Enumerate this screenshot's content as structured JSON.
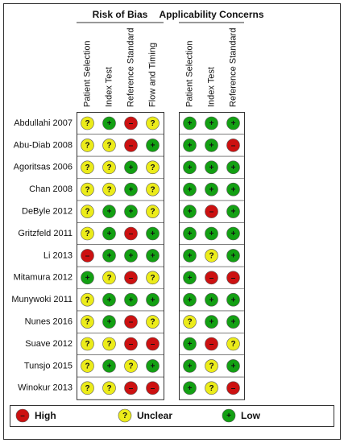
{
  "groups": [
    {
      "title": "Risk of Bias",
      "columns": [
        "Patient Selection",
        "Index Test",
        "Reference Standard",
        "Flow and Timing"
      ]
    },
    {
      "title": "Applicability Concerns",
      "columns": [
        "Patient Selection",
        "Index Test",
        "Reference Standard"
      ]
    }
  ],
  "rows": [
    {
      "study": "Abdullahi 2007",
      "judgments": [
        "?",
        "+",
        "–",
        "?",
        "+",
        "+",
        "+"
      ]
    },
    {
      "study": "Abu-Diab 2008",
      "judgments": [
        "?",
        "?",
        "–",
        "+",
        "+",
        "+",
        "–"
      ]
    },
    {
      "study": "Agoritsas 2006",
      "judgments": [
        "?",
        "?",
        "+",
        "?",
        "+",
        "+",
        "+"
      ]
    },
    {
      "study": "Chan 2008",
      "judgments": [
        "?",
        "?",
        "+",
        "?",
        "+",
        "+",
        "+"
      ]
    },
    {
      "study": "DeByle 2012",
      "judgments": [
        "?",
        "+",
        "+",
        "?",
        "+",
        "–",
        "+"
      ]
    },
    {
      "study": "Gritzfeld 2011",
      "judgments": [
        "?",
        "+",
        "–",
        "+",
        "+",
        "+",
        "+"
      ]
    },
    {
      "study": "Li 2013",
      "judgments": [
        "–",
        "+",
        "+",
        "+",
        "+",
        "?",
        "+"
      ]
    },
    {
      "study": "Mitamura 2012",
      "judgments": [
        "+",
        "?",
        "–",
        "?",
        "+",
        "–",
        "–"
      ]
    },
    {
      "study": "Munywoki 2011",
      "judgments": [
        "?",
        "+",
        "+",
        "+",
        "+",
        "+",
        "+"
      ]
    },
    {
      "study": "Nunes 2016",
      "judgments": [
        "?",
        "+",
        "–",
        "?",
        "?",
        "+",
        "+"
      ]
    },
    {
      "study": "Suave 2012",
      "judgments": [
        "?",
        "?",
        "–",
        "–",
        "+",
        "–",
        "?"
      ]
    },
    {
      "study": "Tunsjo 2015",
      "judgments": [
        "?",
        "+",
        "?",
        "+",
        "+",
        "?",
        "+"
      ]
    },
    {
      "study": "Winokur 2013",
      "judgments": [
        "?",
        "?",
        "–",
        "–",
        "+",
        "?",
        "–"
      ]
    }
  ],
  "legend": [
    {
      "symbol": "–",
      "label": "High",
      "color": "#cc1111"
    },
    {
      "symbol": "?",
      "label": "Unclear",
      "color": "#ecec1a"
    },
    {
      "symbol": "+",
      "label": "Low",
      "color": "#13a013"
    }
  ]
}
